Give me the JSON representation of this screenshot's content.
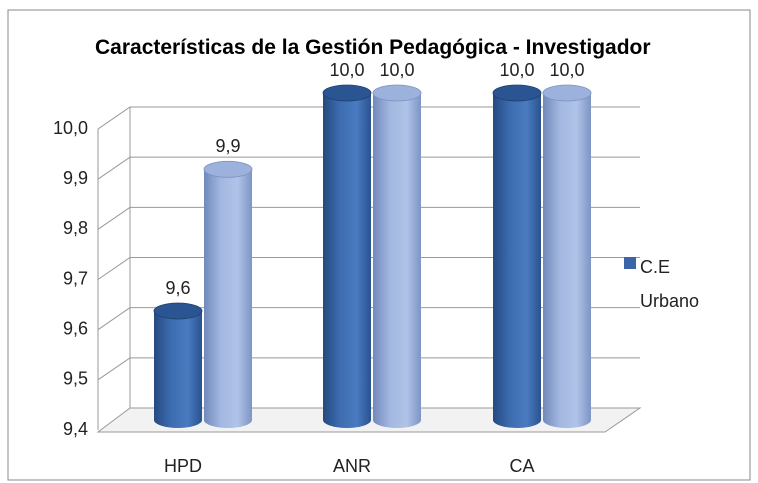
{
  "chart_data": {
    "type": "bar",
    "title": "Características de la Gestión Pedagógica - Investigador",
    "categories": [
      "HPD",
      "ANR",
      "CA"
    ],
    "series": [
      {
        "name": "C.E Urbano",
        "color": "#3a66a8",
        "values": [
          9.6,
          10.0,
          10.0
        ],
        "value_labels": [
          "9,6",
          "10,0",
          "10,0"
        ]
      },
      {
        "color": "#93a9d4",
        "values": [
          9.86,
          10.0,
          10.0
        ],
        "value_labels": [
          "9,9",
          "10,0",
          "10,0"
        ]
      }
    ],
    "ylim": [
      9.4,
      10.0
    ],
    "yticks": [
      {
        "value": 9.4,
        "label": "9,4"
      },
      {
        "value": 9.5,
        "label": "9,5"
      },
      {
        "value": 9.6,
        "label": "9,6"
      },
      {
        "value": 9.7,
        "label": "9,7"
      },
      {
        "value": 9.8,
        "label": "9,8"
      },
      {
        "value": 9.9,
        "label": "9,9"
      },
      {
        "value": 10.0,
        "label": "10,0"
      }
    ],
    "grid": true,
    "legend": "right"
  }
}
